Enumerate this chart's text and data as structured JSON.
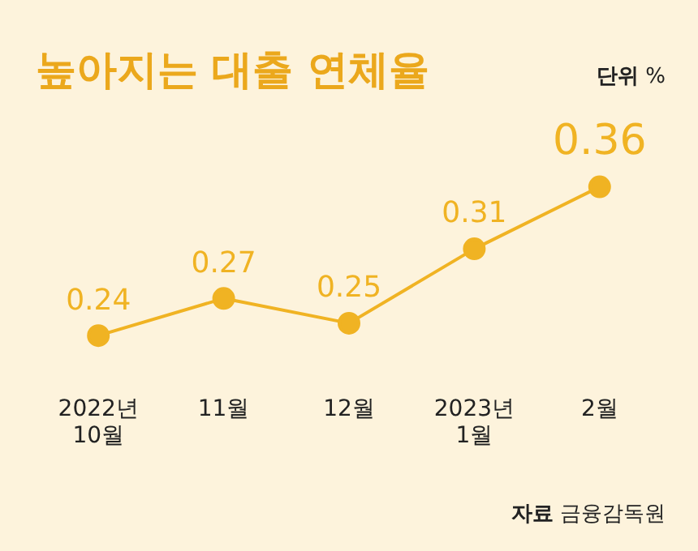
{
  "chart_data": {
    "type": "line",
    "title": "높아지는 대출 연체율",
    "categories": [
      "2022년 10월",
      "11월",
      "12월",
      "2023년 1월",
      "2월"
    ],
    "series": [
      {
        "color": "#f0b323",
        "values": [
          0.24,
          0.27,
          0.25,
          0.31,
          0.36
        ]
      }
    ],
    "data_labels": true,
    "marker": "circle",
    "grid": false,
    "legend": false,
    "tick_labels": "x",
    "annotations": [
      "단위 %",
      "자료 금융감독원"
    ]
  }
}
